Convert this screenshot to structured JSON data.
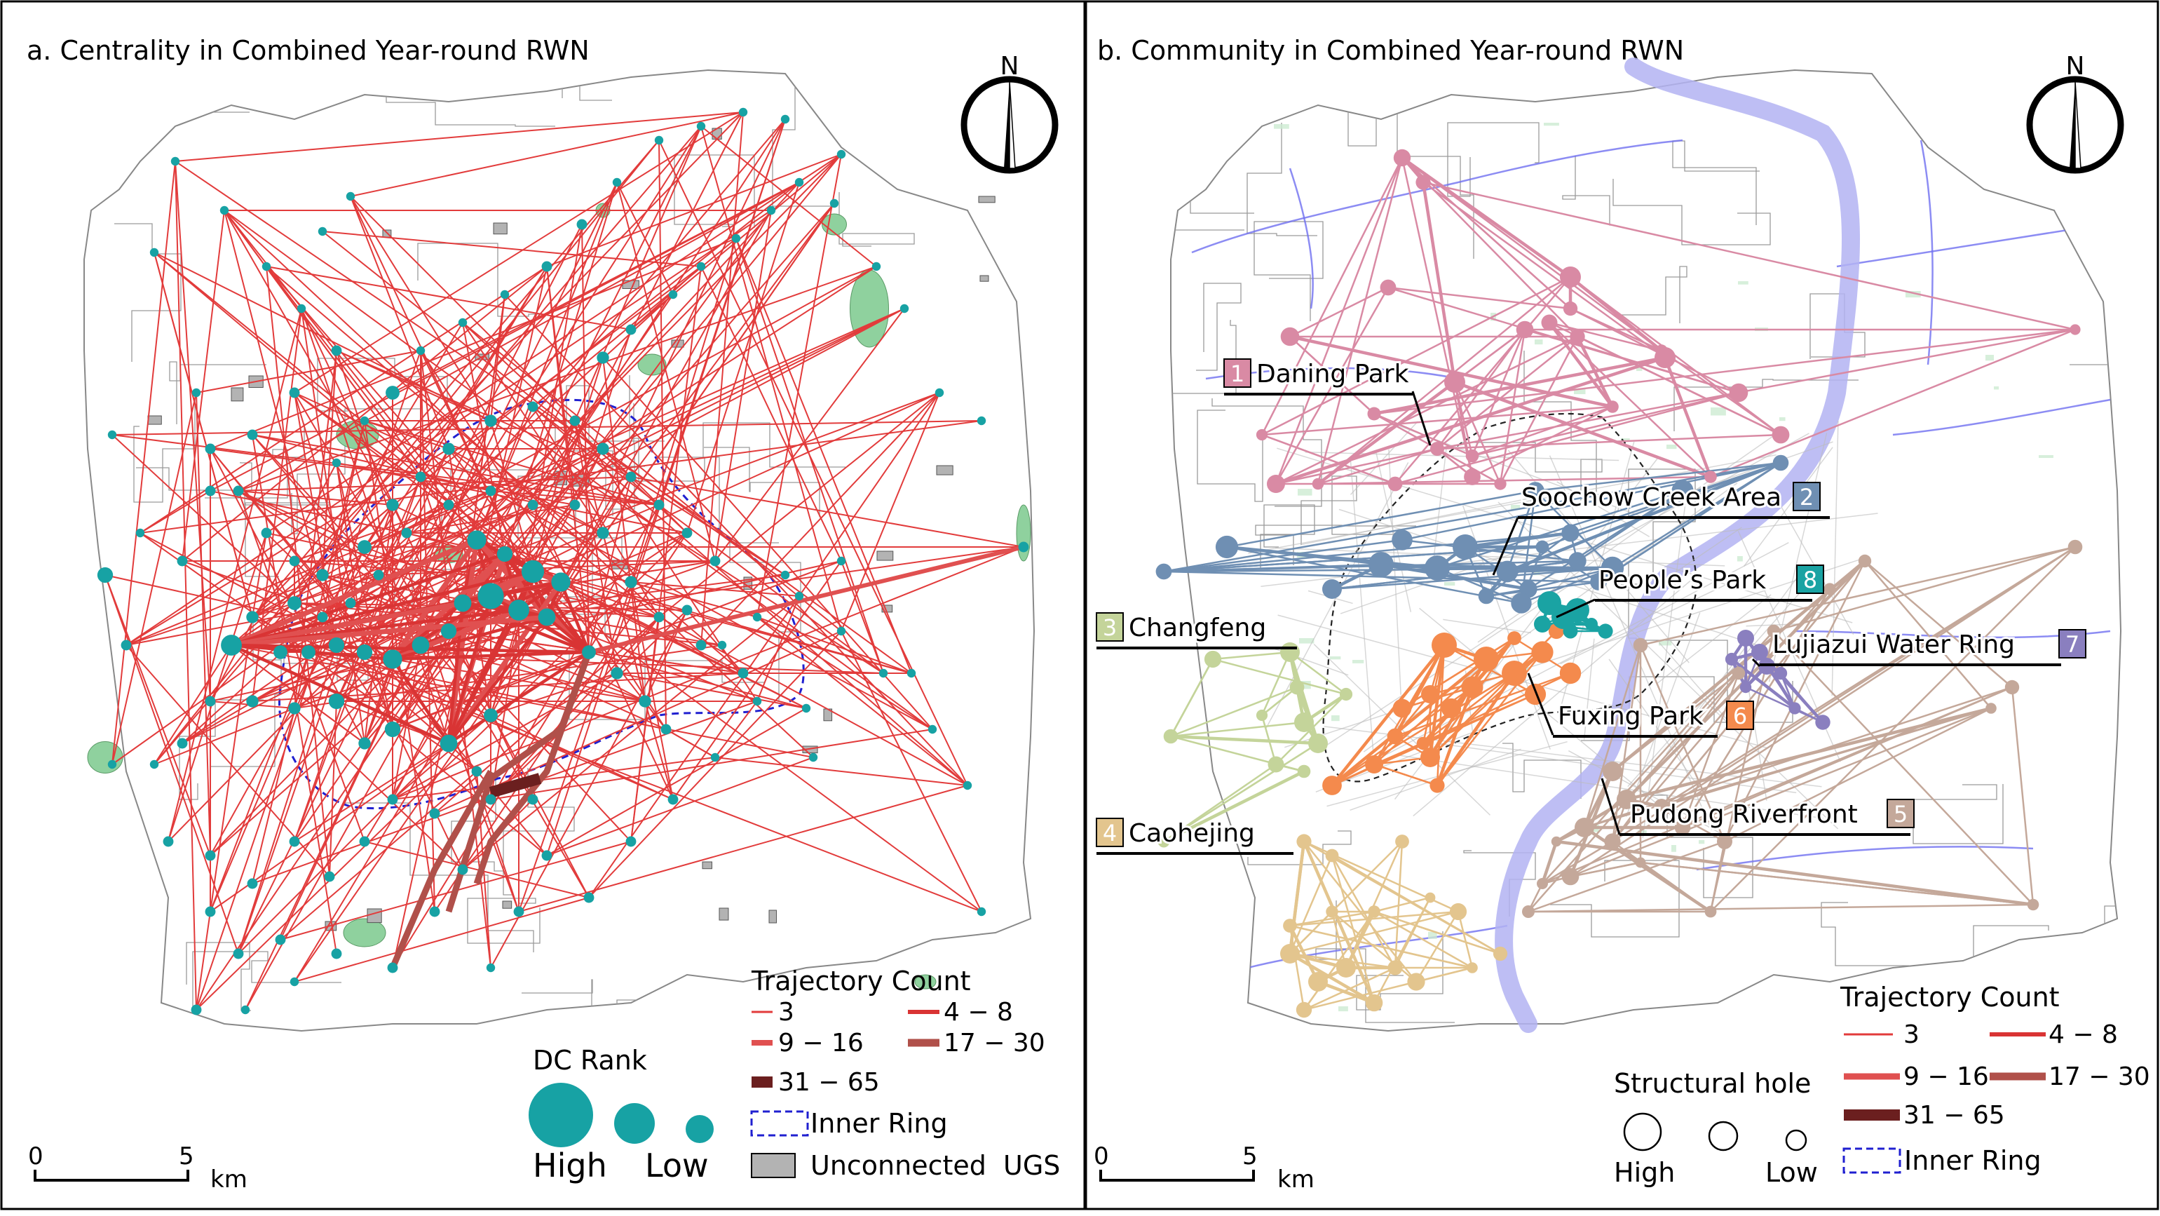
{
  "panel_a": {
    "title": "a. Centrality in Combined Year-round RWN",
    "north": "N",
    "legend": {
      "trajectory_title": "Trajectory Count",
      "classes": [
        "3",
        "4 − 8",
        "9 − 16",
        "17 − 30",
        "31 − 65"
      ],
      "dc_rank_title": "DC Rank",
      "high": "High",
      "low": "Low",
      "inner_ring": "Inner Ring",
      "unconnected": "Unconnected  UGS"
    },
    "scale": {
      "start": "0",
      "end": "5",
      "unit": "km"
    }
  },
  "panel_b": {
    "title": "b. Community in Combined Year-round RWN",
    "north": "N",
    "communities": [
      {
        "number": "1",
        "name": "Daning Park",
        "color": "#d98aa4"
      },
      {
        "number": "2",
        "name": "Soochow Creek Area",
        "color": "#6f8fb3"
      },
      {
        "number": "3",
        "name": "Changfeng",
        "color": "#c4d49a"
      },
      {
        "number": "4",
        "name": "Caohejing",
        "color": "#e3c58e"
      },
      {
        "number": "5",
        "name": "Pudong Riverfront",
        "color": "#c4a89a"
      },
      {
        "number": "6",
        "name": "Fuxing Park",
        "color": "#f48a4d"
      },
      {
        "number": "7",
        "name": "Lujiazui Water Ring",
        "color": "#8a7fbf"
      },
      {
        "number": "8",
        "name": "People’s Park",
        "color": "#1aa3a3"
      }
    ],
    "legend": {
      "trajectory_title": "Trajectory Count",
      "classes": [
        "3",
        "4 − 8",
        "9 − 16",
        "17 − 30",
        "31 − 65"
      ],
      "structural_title": "Structural hole",
      "high": "High",
      "low": "Low",
      "inner_ring": "Inner Ring"
    },
    "scale": {
      "start": "0",
      "end": "5",
      "unit": "km"
    }
  },
  "colors": {
    "edge_3": "#e23b3b",
    "edge_4_8": "#d93434",
    "edge_9_16": "#e05050",
    "edge_17_30": "#b0504a",
    "edge_31_65": "#6b1f1f",
    "node": "#17a2a4",
    "ugs_green": "#8fd19e",
    "river": "#b3b3f2"
  }
}
